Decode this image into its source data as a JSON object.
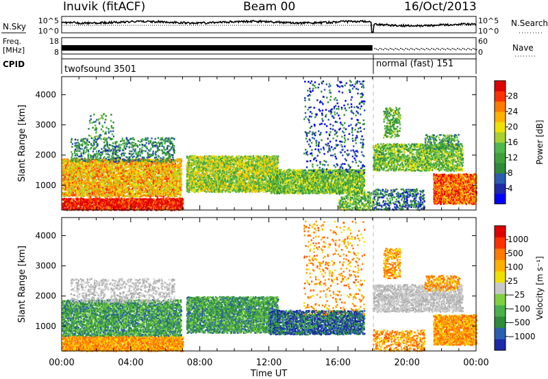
{
  "header": {
    "station": "Inuvik (fitACF)",
    "beam": "Beam 00",
    "date": "16/Oct/2013"
  },
  "noise_panel": {
    "left_label": "N.Sky",
    "left_ticks": [
      "10^5",
      "10^0"
    ],
    "right_ticks": [
      "10^5",
      "10^0"
    ],
    "right_label": "N.Search",
    "right_legend_style": "dotted"
  },
  "freq_panel": {
    "left_label_line1": "Freq.",
    "left_label_line2": "[MHz]",
    "left_ticks": [
      "18",
      "8"
    ],
    "right_ticks": [
      "60",
      "0"
    ],
    "right_label": "Nave",
    "right_legend_style": "dotted"
  },
  "cpid": {
    "label": "CPID",
    "programs": [
      {
        "name": "twofsound 3501",
        "start_hour": 0,
        "end_hour": 18.05
      },
      {
        "name": "normal (fast) 151",
        "start_hour": 18.05,
        "end_hour": 24
      }
    ]
  },
  "time_axis": {
    "label": "Time UT",
    "tick_labels": [
      "00:00",
      "04:00",
      "08:00",
      "12:00",
      "16:00",
      "20:00",
      "00:00"
    ]
  },
  "chart_data": [
    {
      "type": "heatmap",
      "title": "",
      "xlabel": "Time UT",
      "ylabel": "Slant Range [km]",
      "xlim": [
        0,
        24
      ],
      "ylim": [
        180,
        4600
      ],
      "yticks": [
        1000,
        2000,
        3000,
        4000
      ],
      "colorbar": {
        "label": "Power [dB]",
        "range": [
          0,
          32
        ],
        "tick_labels": [
          "28",
          "24",
          "20",
          "16",
          "12",
          "8",
          "4"
        ],
        "colors": [
          "#0000ff",
          "#1e2aa8",
          "#2a5cb0",
          "#2e8b3a",
          "#3fa03a",
          "#4fb84c",
          "#a8d030",
          "#f0e000",
          "#ffb000",
          "#ff7a00",
          "#ff3000",
          "#e00000"
        ]
      },
      "scatter_regions": [
        {
          "name": "A",
          "t0": 0.0,
          "t1": 7.0,
          "r0": 200,
          "r1": 600,
          "value": 30,
          "density": 0.85
        },
        {
          "name": "B",
          "t0": 0.0,
          "t1": 6.9,
          "r0": 650,
          "r1": 1900,
          "value": 22,
          "density": 0.7
        },
        {
          "name": "C",
          "t0": 0.5,
          "t1": 6.5,
          "r0": 1800,
          "r1": 2600,
          "value": 10,
          "density": 0.25
        },
        {
          "name": "D",
          "t0": 1.5,
          "t1": 3.0,
          "r0": 2600,
          "r1": 3400,
          "value": 12,
          "density": 0.12
        },
        {
          "name": "E",
          "t0": 7.2,
          "t1": 12.5,
          "r0": 800,
          "r1": 2000,
          "value": 17,
          "density": 0.7
        },
        {
          "name": "F",
          "t0": 12.0,
          "t1": 17.5,
          "r0": 750,
          "r1": 1550,
          "value": 15,
          "density": 0.75
        },
        {
          "name": "G",
          "t0": 14.0,
          "t1": 17.5,
          "r0": 1400,
          "r1": 4500,
          "value": 6,
          "density": 0.08
        },
        {
          "name": "H",
          "t0": 16.0,
          "t1": 18.0,
          "r0": 200,
          "r1": 800,
          "value": 14,
          "density": 0.45
        },
        {
          "name": "I",
          "t0": 18.0,
          "t1": 23.2,
          "r0": 1500,
          "r1": 2400,
          "value": 15,
          "density": 0.55
        },
        {
          "name": "J",
          "t0": 18.6,
          "t1": 19.6,
          "r0": 2600,
          "r1": 3600,
          "value": 14,
          "density": 0.35
        },
        {
          "name": "K",
          "t0": 21.5,
          "t1": 24.0,
          "r0": 400,
          "r1": 1400,
          "value": 26,
          "density": 0.75
        },
        {
          "name": "L",
          "t0": 21.0,
          "t1": 23.0,
          "r0": 2200,
          "r1": 2700,
          "value": 12,
          "density": 0.4
        },
        {
          "name": "M",
          "t0": 18.0,
          "t1": 21.0,
          "r0": 200,
          "r1": 900,
          "value": 8,
          "density": 0.3
        }
      ]
    },
    {
      "type": "heatmap",
      "title": "",
      "xlabel": "Time UT",
      "ylabel": "Slant Range [km]",
      "xlim": [
        0,
        24
      ],
      "ylim": [
        180,
        4600
      ],
      "yticks": [
        1000,
        2000,
        3000,
        4000
      ],
      "colorbar": {
        "label": "Velocity [m s⁻¹]",
        "tick_labels": [
          "1000",
          "500",
          "100",
          "25",
          "−25",
          "−100",
          "−500",
          "−1000"
        ],
        "colors": [
          "#1a2aa8",
          "#2a5fb0",
          "#2e8b3a",
          "#49b04a",
          "#7fd040",
          "#c8c8c8",
          "#f0e000",
          "#ffb000",
          "#ff7a00",
          "#ff3000",
          "#e00000"
        ]
      },
      "scatter_regions": [
        {
          "name": "A",
          "t0": 0.0,
          "t1": 7.0,
          "r0": 200,
          "r1": 700,
          "value": "orange",
          "density": 0.8
        },
        {
          "name": "B",
          "t0": 0.0,
          "t1": 6.9,
          "r0": 700,
          "r1": 1900,
          "value": "green",
          "density": 0.65
        },
        {
          "name": "C",
          "t0": 0.5,
          "t1": 6.5,
          "r0": 1800,
          "r1": 2600,
          "value": "grey",
          "density": 0.25
        },
        {
          "name": "E",
          "t0": 7.2,
          "t1": 12.5,
          "r0": 800,
          "r1": 2000,
          "value": "green",
          "density": 0.7
        },
        {
          "name": "F",
          "t0": 12.0,
          "t1": 17.5,
          "r0": 750,
          "r1": 1550,
          "value": "blue",
          "density": 0.7
        },
        {
          "name": "G",
          "t0": 14.0,
          "t1": 17.5,
          "r0": 1400,
          "r1": 4500,
          "value": "orange",
          "density": 0.08
        },
        {
          "name": "I",
          "t0": 18.0,
          "t1": 23.2,
          "r0": 1500,
          "r1": 2400,
          "value": "grey",
          "density": 0.55
        },
        {
          "name": "J",
          "t0": 18.6,
          "t1": 19.6,
          "r0": 2600,
          "r1": 3600,
          "value": "orange",
          "density": 0.35
        },
        {
          "name": "K",
          "t0": 21.5,
          "t1": 24.0,
          "r0": 400,
          "r1": 1400,
          "value": "orange",
          "density": 0.75
        },
        {
          "name": "L",
          "t0": 21.0,
          "t1": 23.0,
          "r0": 2200,
          "r1": 2700,
          "value": "orange",
          "density": 0.4
        },
        {
          "name": "M",
          "t0": 18.0,
          "t1": 21.0,
          "r0": 200,
          "r1": 900,
          "value": "orange",
          "density": 0.3
        }
      ]
    }
  ]
}
